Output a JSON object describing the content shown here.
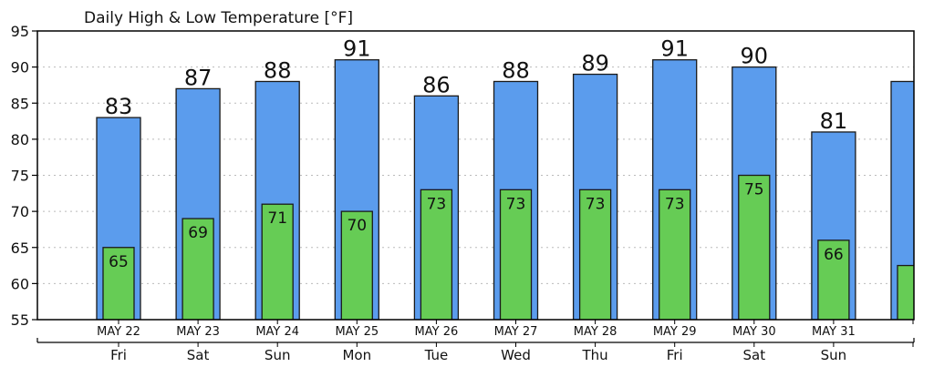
{
  "chart_data": {
    "type": "bar",
    "title": "Daily High & Low Temperature [°F]",
    "ylim": [
      55,
      95
    ],
    "yticks": [
      55,
      60,
      65,
      70,
      75,
      80,
      85,
      90,
      95
    ],
    "grid": true,
    "dates": [
      "MAY 22",
      "MAY 23",
      "MAY 24",
      "MAY 25",
      "MAY 26",
      "MAY 27",
      "MAY 28",
      "MAY 29",
      "MAY 30",
      "MAY 31",
      ""
    ],
    "days": [
      "Fri",
      "Sat",
      "Sun",
      "Mon",
      "Tue",
      "Wed",
      "Thu",
      "Fri",
      "Sat",
      "Sun",
      ""
    ],
    "series": [
      {
        "values": [
          83,
          87,
          88,
          91,
          86,
          88,
          89,
          91,
          90,
          81,
          88
        ],
        "color": "#5b9ced",
        "labels": [
          "83",
          "87",
          "88",
          "91",
          "86",
          "88",
          "89",
          "91",
          "90",
          "81",
          ""
        ]
      },
      {
        "values": [
          65,
          69,
          71,
          70,
          73,
          73,
          73,
          73,
          75,
          66,
          62.5
        ],
        "color": "#66cc55",
        "labels": [
          "65",
          "69",
          "71",
          "70",
          "73",
          "73",
          "73",
          "73",
          "75",
          "66",
          ""
        ]
      }
    ]
  }
}
